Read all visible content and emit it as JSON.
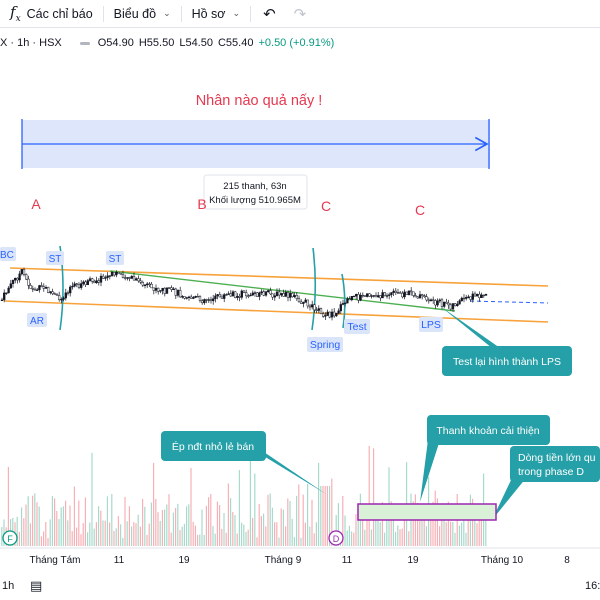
{
  "toolbar": {
    "indicators_label": "Các chỉ báo",
    "chart_type_label": "Biểu đồ",
    "profile_label": "Hồ sơ",
    "fx_symbol": "f",
    "fx_subscript": "x"
  },
  "legend": {
    "symbol": "X · 1h · HSX",
    "open": "O54.90",
    "high": "H55.50",
    "low": "L54.50",
    "close": "C55.40",
    "change": "+0.50 (+0.91%)"
  },
  "annotations": {
    "title": "Nhân nào quả nấy !",
    "phase_a": "A",
    "phase_b": "B",
    "phase_c1": "C",
    "phase_c2": "C",
    "tooltip_line1": "215 thanh, 63n",
    "tooltip_line2": "Khối lượng 510.965M",
    "bc": "BC",
    "st1": "ST",
    "st2": "ST",
    "ar": "AR",
    "spring": "Spring",
    "test": "Test",
    "lps": "LPS",
    "callout_lps": "Test lại hình thành LPS",
    "callout_sell": "Ép nđt nhỏ lẻ bán",
    "callout_liquidity": "Thanh khoản cải thiện",
    "callout_money_line1": "Dòng tiền lớn qu",
    "callout_money_line2": "trong phase D",
    "marker_f": "F",
    "marker_d": "D"
  },
  "x_axis": [
    "Tháng Tám",
    "11",
    "19",
    "Tháng 9",
    "11",
    "19",
    "Tháng 10",
    "8"
  ],
  "bottom": {
    "interval": "1h",
    "time": "16:"
  },
  "colors": {
    "channel": "#f7a23b",
    "trend": "#4caf50",
    "range_fill": "#dde6fb",
    "range_line": "#2962ff",
    "callout": "#26a0a8",
    "label_bg": "#dbe5fa",
    "label_text": "#2962ff",
    "phase_text": "#e53950",
    "up": "#089981",
    "down": "#f23645",
    "vol_up": "#a7dacb",
    "vol_down": "#f7b0b5",
    "box": "#9c27b0",
    "box_fill": "#d9f1d6"
  }
}
